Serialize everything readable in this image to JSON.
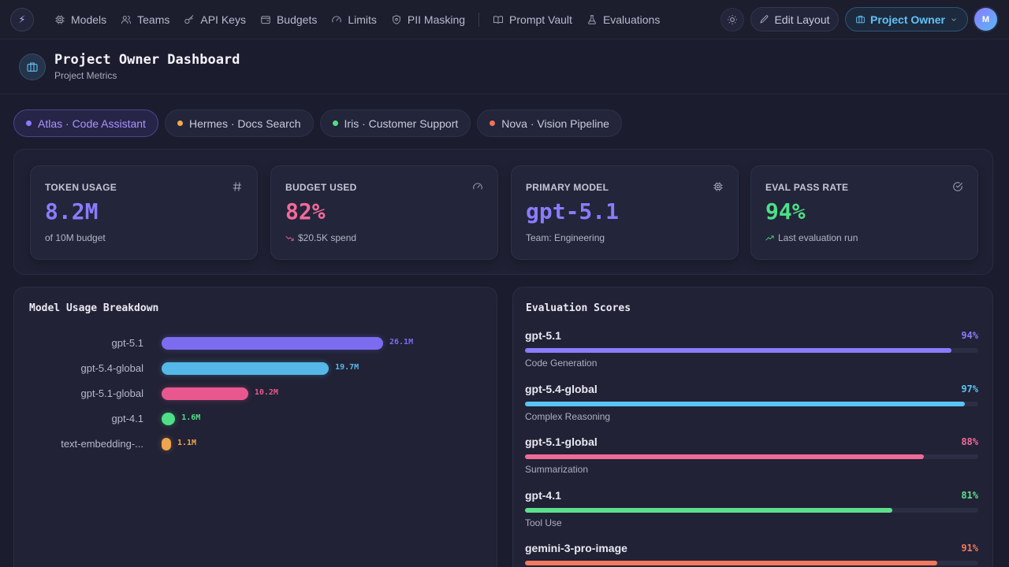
{
  "nav": {
    "logo_icon": "bolt-icon",
    "items": [
      {
        "label": "Models",
        "icon": "cpu-icon"
      },
      {
        "label": "Teams",
        "icon": "users-icon"
      },
      {
        "label": "API Keys",
        "icon": "key-icon"
      },
      {
        "label": "Budgets",
        "icon": "wallet-icon"
      },
      {
        "label": "Limits",
        "icon": "gauge-icon"
      },
      {
        "label": "PII Masking",
        "icon": "shield-icon"
      }
    ],
    "items_right": [
      {
        "label": "Prompt Vault",
        "icon": "book-icon"
      },
      {
        "label": "Evaluations",
        "icon": "flask-icon"
      }
    ],
    "edit_layout_label": "Edit Layout",
    "role_label": "Project Owner",
    "avatar_initial": "M"
  },
  "header": {
    "title": "Project Owner Dashboard",
    "subtitle": "Project Metrics"
  },
  "projects": [
    {
      "label": "Atlas · Code Assistant",
      "color": "#8b7bff",
      "active": true
    },
    {
      "label": "Hermes · Docs Search",
      "color": "#f5a94a",
      "active": false
    },
    {
      "label": "Iris · Customer Support",
      "color": "#4fdf86",
      "active": false
    },
    {
      "label": "Nova · Vision Pipeline",
      "color": "#f2715a",
      "active": false
    }
  ],
  "kpis": [
    {
      "label": "TOKEN USAGE",
      "value": "8.2M",
      "sub": "of 10M budget",
      "color": "#8b7bff",
      "icon": "hash-icon",
      "trend": ""
    },
    {
      "label": "BUDGET USED",
      "value": "82%",
      "sub": "$20.5K spend",
      "color": "#f26a98",
      "icon": "gauge-icon",
      "trend": "down"
    },
    {
      "label": "PRIMARY MODEL",
      "value": "gpt-5.1",
      "sub": "Team: Engineering",
      "color": "#8b7bff",
      "icon": "cpu-icon",
      "trend": ""
    },
    {
      "label": "EVAL PASS RATE",
      "value": "94%",
      "sub": "Last evaluation run",
      "color": "#4fdf86",
      "icon": "check-circle-icon",
      "trend": "up"
    }
  ],
  "usage": {
    "title": "Model Usage Breakdown",
    "max_value": 26.1,
    "rows": [
      {
        "model": "gpt-5.1",
        "value": 26.1,
        "label": "26.1M",
        "color": "#7c6cf0"
      },
      {
        "model": "gpt-5.4-global",
        "value": 19.7,
        "label": "19.7M",
        "color": "#55b8e8"
      },
      {
        "model": "gpt-5.1-global",
        "value": 10.2,
        "label": "10.2M",
        "color": "#e8588f"
      },
      {
        "model": "gpt-4.1",
        "value": 1.6,
        "label": "1.6M",
        "color": "#4fdf86"
      },
      {
        "model": "text-embedding-...",
        "value": 1.1,
        "label": "1.1M",
        "color": "#f0a44e"
      }
    ]
  },
  "evals": {
    "title": "Evaluation Scores",
    "rows": [
      {
        "model": "gpt-5.1",
        "task": "Code Generation",
        "score": 94,
        "label": "94%",
        "color": "#8b7bff"
      },
      {
        "model": "gpt-5.4-global",
        "task": "Complex Reasoning",
        "score": 97,
        "label": "97%",
        "color": "#5bc4f5"
      },
      {
        "model": "gpt-5.1-global",
        "task": "Summarization",
        "score": 88,
        "label": "88%",
        "color": "#f26a98"
      },
      {
        "model": "gpt-4.1",
        "task": "Tool Use",
        "score": 81,
        "label": "81%",
        "color": "#5de08e"
      },
      {
        "model": "gemini-3-pro-image",
        "task": "",
        "score": 91,
        "label": "91%",
        "color": "#f2785e"
      }
    ]
  }
}
